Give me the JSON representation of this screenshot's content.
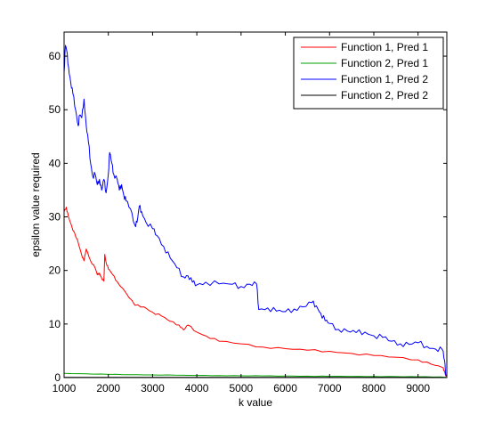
{
  "chart_data": {
    "type": "line",
    "xlabel": "k value",
    "ylabel": "epsilon value required",
    "xlim": [
      1000,
      9650
    ],
    "ylim": [
      0,
      64.5
    ],
    "xticks": [
      1000,
      2000,
      3000,
      4000,
      5000,
      6000,
      7000,
      8000,
      9000
    ],
    "xtick_labels": [
      "1000",
      "2000",
      "3000",
      "4000",
      "5000",
      "6000",
      "7000",
      "8000",
      "9000"
    ],
    "yticks": [
      0,
      10,
      20,
      30,
      40,
      50,
      60
    ],
    "ytick_labels": [
      "0",
      "10",
      "20",
      "30",
      "40",
      "50",
      "60"
    ],
    "grid": false,
    "legend_position": "top-right",
    "series": [
      {
        "name": "Function 1, Pred 1",
        "color": "#ff0000",
        "x": [
          1000,
          1050,
          1100,
          1200,
          1300,
          1400,
          1450,
          1500,
          1600,
          1700,
          1750,
          1800,
          1850,
          1900,
          1920,
          1950,
          2000,
          2100,
          2200,
          2400,
          2600,
          2800,
          3000,
          3200,
          3400,
          3600,
          3700,
          3800,
          4000,
          4200,
          4500,
          5000,
          5500,
          6000,
          6500,
          7000,
          7500,
          8000,
          8500,
          9000,
          9300,
          9550,
          9600,
          9630
        ],
        "y": [
          31,
          31.8,
          30,
          27.5,
          25.8,
          22.8,
          21.8,
          24,
          21.8,
          20.5,
          19.2,
          19.5,
          18.5,
          18,
          23,
          21.5,
          20.3,
          19.2,
          17.9,
          15.8,
          13.5,
          13.2,
          12.2,
          11.5,
          10.5,
          9.8,
          8.9,
          9.8,
          8.5,
          7.8,
          6.8,
          6.3,
          5.7,
          5.4,
          5.1,
          4.9,
          4.5,
          4.1,
          3.8,
          3.3,
          2.5,
          1.9,
          1.2,
          0.2
        ]
      },
      {
        "name": "Function 2, Pred 1",
        "color": "#00a000",
        "x": [
          1000,
          1500,
          2000,
          2500,
          3000,
          3500,
          4000,
          4500,
          5000,
          5500,
          6000,
          6500,
          7000,
          7500,
          8000,
          8500,
          9000,
          9500,
          9630
        ],
        "y": [
          0.8,
          0.7,
          0.6,
          0.55,
          0.5,
          0.45,
          0.4,
          0.37,
          0.34,
          0.31,
          0.28,
          0.26,
          0.24,
          0.22,
          0.2,
          0.18,
          0.15,
          0.12,
          0.05
        ]
      },
      {
        "name": "Function 1, Pred 2",
        "color": "#0000ff",
        "x": [
          1000,
          1030,
          1060,
          1100,
          1150,
          1200,
          1260,
          1320,
          1350,
          1400,
          1450,
          1500,
          1550,
          1600,
          1650,
          1700,
          1750,
          1800,
          1850,
          1900,
          1950,
          2000,
          2030,
          2080,
          2120,
          2200,
          2250,
          2300,
          2350,
          2400,
          2500,
          2600,
          2650,
          2700,
          2750,
          2850,
          3000,
          3100,
          3250,
          3400,
          3550,
          3700,
          3800,
          3900,
          4000,
          4200,
          4500,
          4800,
          5000,
          5200,
          5350,
          5400,
          5600,
          5800,
          6000,
          6200,
          6400,
          6600,
          6700,
          6800,
          6900,
          7000,
          7200,
          7400,
          7600,
          7800,
          8000,
          8200,
          8400,
          8600,
          8800,
          9000,
          9200,
          9400,
          9550,
          9600,
          9630
        ],
        "y": [
          57,
          62,
          61,
          58,
          55,
          53,
          50,
          47,
          49,
          48.5,
          52,
          47,
          44,
          40,
          37.5,
          38,
          36,
          37,
          35,
          37,
          34.5,
          38,
          42,
          40,
          38,
          37,
          35,
          36,
          34,
          33,
          31.5,
          28.5,
          29,
          32,
          31,
          29,
          27.8,
          26.5,
          24.5,
          22.3,
          20.5,
          18.8,
          19,
          17.8,
          17.3,
          17.8,
          17.5,
          17.4,
          17,
          17.4,
          17.5,
          12.7,
          13,
          12.4,
          12.3,
          12.8,
          13.2,
          14,
          13.4,
          12,
          10.6,
          10.1,
          9,
          8.7,
          8.4,
          8.5,
          7.8,
          7.5,
          6.8,
          6.3,
          6.2,
          6.5,
          5.8,
          5.3,
          5.2,
          3.2,
          0.3
        ]
      },
      {
        "name": "Function 2, Pred 2",
        "color": "#000000",
        "x": [
          1000,
          2000,
          3000,
          4000,
          5000,
          6000,
          7000,
          8000,
          9000,
          9630
        ],
        "y": [
          0.05,
          0.05,
          0.05,
          0.04,
          0.04,
          0.04,
          0.03,
          0.03,
          0.03,
          0.02
        ]
      }
    ]
  }
}
